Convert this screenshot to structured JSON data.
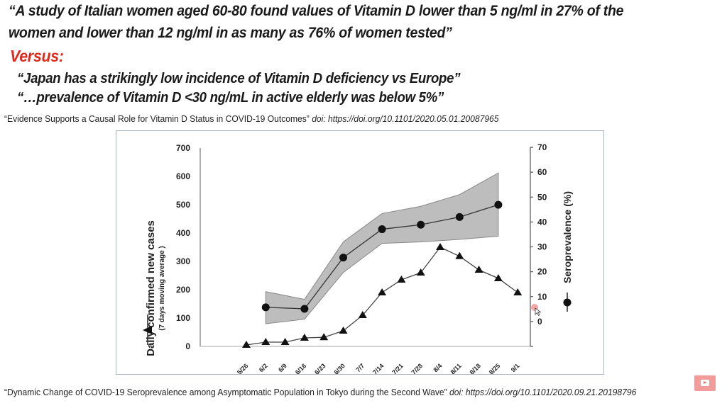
{
  "slide": {
    "quote1_line1": "“A study of Italian women aged 60-80 found values of Vitamin D lower than 5 ng/ml in 27% of the",
    "quote1_line2": "women and lower than 12 ng/ml in as many as 76% of women tested”",
    "versus": "Versus:",
    "quote2": "“Japan has a strikingly low incidence of Vitamin D deficiency vs Europe”",
    "quote3": "“…prevalence of Vitamin D <30 ng/mL in active elderly was below 5%”",
    "citation1_title": "“Evidence Supports a Causal Role for Vitamin D Status in COVID-19 Outcomes”",
    "citation1_doi": "doi: https://doi.org/10.1101/2020.05.01.20087965",
    "citation2_title": "“Dynamic Change of COVID-19 Seroprevalence among Asymptomatic Population in Tokyo during the Second Wave”",
    "citation2_doi": "doi: https://doi.org/10.1101/2020.09.21.20198796",
    "colors": {
      "accent_red": "#e0281c",
      "band_gray": "#bdbdbd",
      "frame": "#a9b4c8"
    },
    "overlay_icon": "youtube-play-icon"
  },
  "chart_data": {
    "type": "line",
    "title": "",
    "x": [
      "5/26",
      "6/2",
      "6/9",
      "6/16",
      "6/23",
      "6/30",
      "7/7",
      "7/14",
      "7/21",
      "7/28",
      "8/4",
      "8/11",
      "8/18",
      "8/25",
      "9/1"
    ],
    "left_axis": {
      "label": "Daily confirmed new cases",
      "sublabel": "(7 days moving  average )",
      "ticks": [
        0,
        100,
        200,
        300,
        400,
        500,
        600,
        700
      ],
      "ylim": [
        0,
        700
      ]
    },
    "right_axis": {
      "label": "Seroprevalence (%)",
      "ticks": [
        0,
        10,
        20,
        30,
        40,
        50,
        60,
        70
      ],
      "ylim": [
        -10,
        70
      ]
    },
    "series": [
      {
        "name": "Daily confirmed new cases",
        "axis": "left",
        "marker": "triangle",
        "x": [
          "5/26",
          "6/2",
          "6/9",
          "6/16",
          "6/23",
          "6/30",
          "7/7",
          "7/14",
          "7/21",
          "7/28",
          "8/4",
          "8/11",
          "8/18",
          "8/25",
          "9/1"
        ],
        "values": [
          5,
          15,
          15,
          30,
          32,
          55,
          110,
          190,
          235,
          260,
          350,
          318,
          270,
          240,
          190
        ]
      },
      {
        "name": "Seroprevalence (%)",
        "axis": "right",
        "marker": "circle",
        "x": [
          "6/2",
          "6/16",
          "6/30",
          "7/14",
          "7/28",
          "8/11",
          "8/25"
        ],
        "values": [
          5.7,
          5.1,
          25.7,
          37.1,
          38.9,
          42.0,
          46.9
        ],
        "ci_upper": [
          12.0,
          8.9,
          32.0,
          43.4,
          46.3,
          51.0,
          59.7
        ],
        "ci_lower": [
          -0.9,
          0.9,
          19.7,
          31.4,
          32.0,
          33.0,
          34.3
        ]
      }
    ],
    "grid": false,
    "legend": "inline-with-axis-labels"
  }
}
